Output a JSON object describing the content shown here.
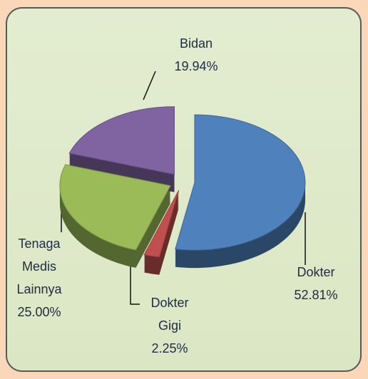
{
  "chart_data": {
    "type": "pie",
    "categories": [
      "Dokter",
      "Dokter Gigi",
      "Tenaga Medis Lainnya",
      "Bidan"
    ],
    "values": [
      52.81,
      2.25,
      25.0,
      19.94
    ],
    "value_labels": [
      "52.81%",
      "2.25%",
      "25.00%",
      "19.94%"
    ],
    "colors": [
      "#4f81bd",
      "#c0504d",
      "#9bbb59",
      "#8064a2"
    ]
  }
}
